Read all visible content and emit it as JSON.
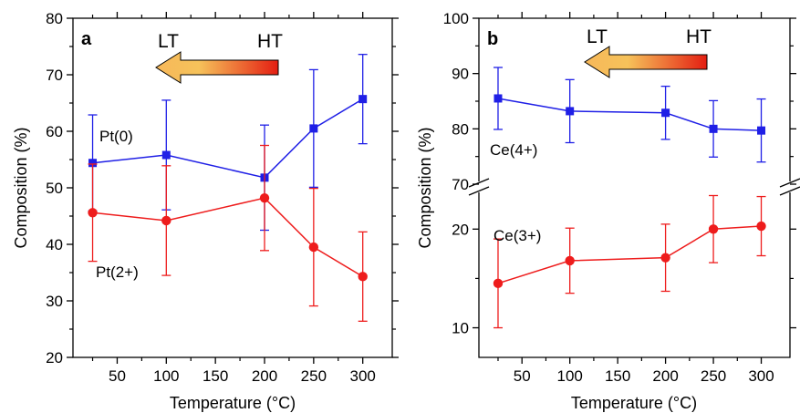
{
  "colors": {
    "blue": "#1f1fe6",
    "red": "#ee1c1c",
    "arrow_start": "#f7b85a",
    "arrow_mid": "#f6c25a",
    "arrow_end": "#e41e12"
  },
  "chart_data": [
    {
      "type": "line",
      "panel_label": "a",
      "xlabel": "Temperature (°C)",
      "ylabel": "Composition (%)",
      "xlim": [
        5,
        330
      ],
      "ylim": [
        20,
        80
      ],
      "xticks": [
        50,
        100,
        150,
        200,
        250,
        300
      ],
      "yticks": [
        20,
        30,
        40,
        50,
        60,
        70,
        80
      ],
      "grid": false,
      "arrow_labels": {
        "left": "LT",
        "right": "HT"
      },
      "series": [
        {
          "name": "Pt(0)",
          "color": "#1f1fe6",
          "marker": "square",
          "x": [
            25,
            100,
            200,
            250,
            300
          ],
          "y": [
            54.4,
            55.8,
            51.8,
            60.5,
            65.7
          ],
          "err": [
            8.5,
            9.7,
            9.3,
            10.4,
            7.9
          ]
        },
        {
          "name": "Pt(2+)",
          "color": "#ee1c1c",
          "marker": "circle",
          "x": [
            25,
            100,
            200,
            250,
            300
          ],
          "y": [
            45.6,
            44.2,
            48.2,
            39.5,
            34.3
          ],
          "err": [
            8.6,
            9.7,
            9.3,
            10.4,
            7.9
          ]
        }
      ]
    },
    {
      "type": "line",
      "panel_label": "b",
      "xlabel": "Temperature (°C)",
      "ylabel": "Composition (%)",
      "xlim": [
        5,
        330
      ],
      "ylim_upper": [
        70,
        100
      ],
      "ylim_lower": [
        7,
        24
      ],
      "axis_break": true,
      "xticks": [
        50,
        100,
        150,
        200,
        250,
        300
      ],
      "yticks_upper": [
        70,
        80,
        90,
        100
      ],
      "yticks_lower": [
        10,
        20
      ],
      "grid": false,
      "arrow_labels": {
        "left": "LT",
        "right": "HT"
      },
      "series": [
        {
          "name": "Ce(4+)",
          "color": "#1f1fe6",
          "marker": "square",
          "x": [
            25,
            100,
            200,
            250,
            300
          ],
          "y": [
            85.5,
            83.2,
            82.9,
            80.0,
            79.7
          ],
          "err": [
            5.6,
            5.7,
            4.8,
            5.1,
            5.7
          ]
        },
        {
          "name": "Ce(3+)",
          "color": "#ee1c1c",
          "marker": "circle",
          "x": [
            25,
            100,
            200,
            250,
            300
          ],
          "y": [
            14.5,
            16.8,
            17.1,
            20.0,
            20.3
          ],
          "err": [
            4.5,
            3.3,
            3.4,
            3.4,
            3.0
          ]
        }
      ]
    }
  ]
}
